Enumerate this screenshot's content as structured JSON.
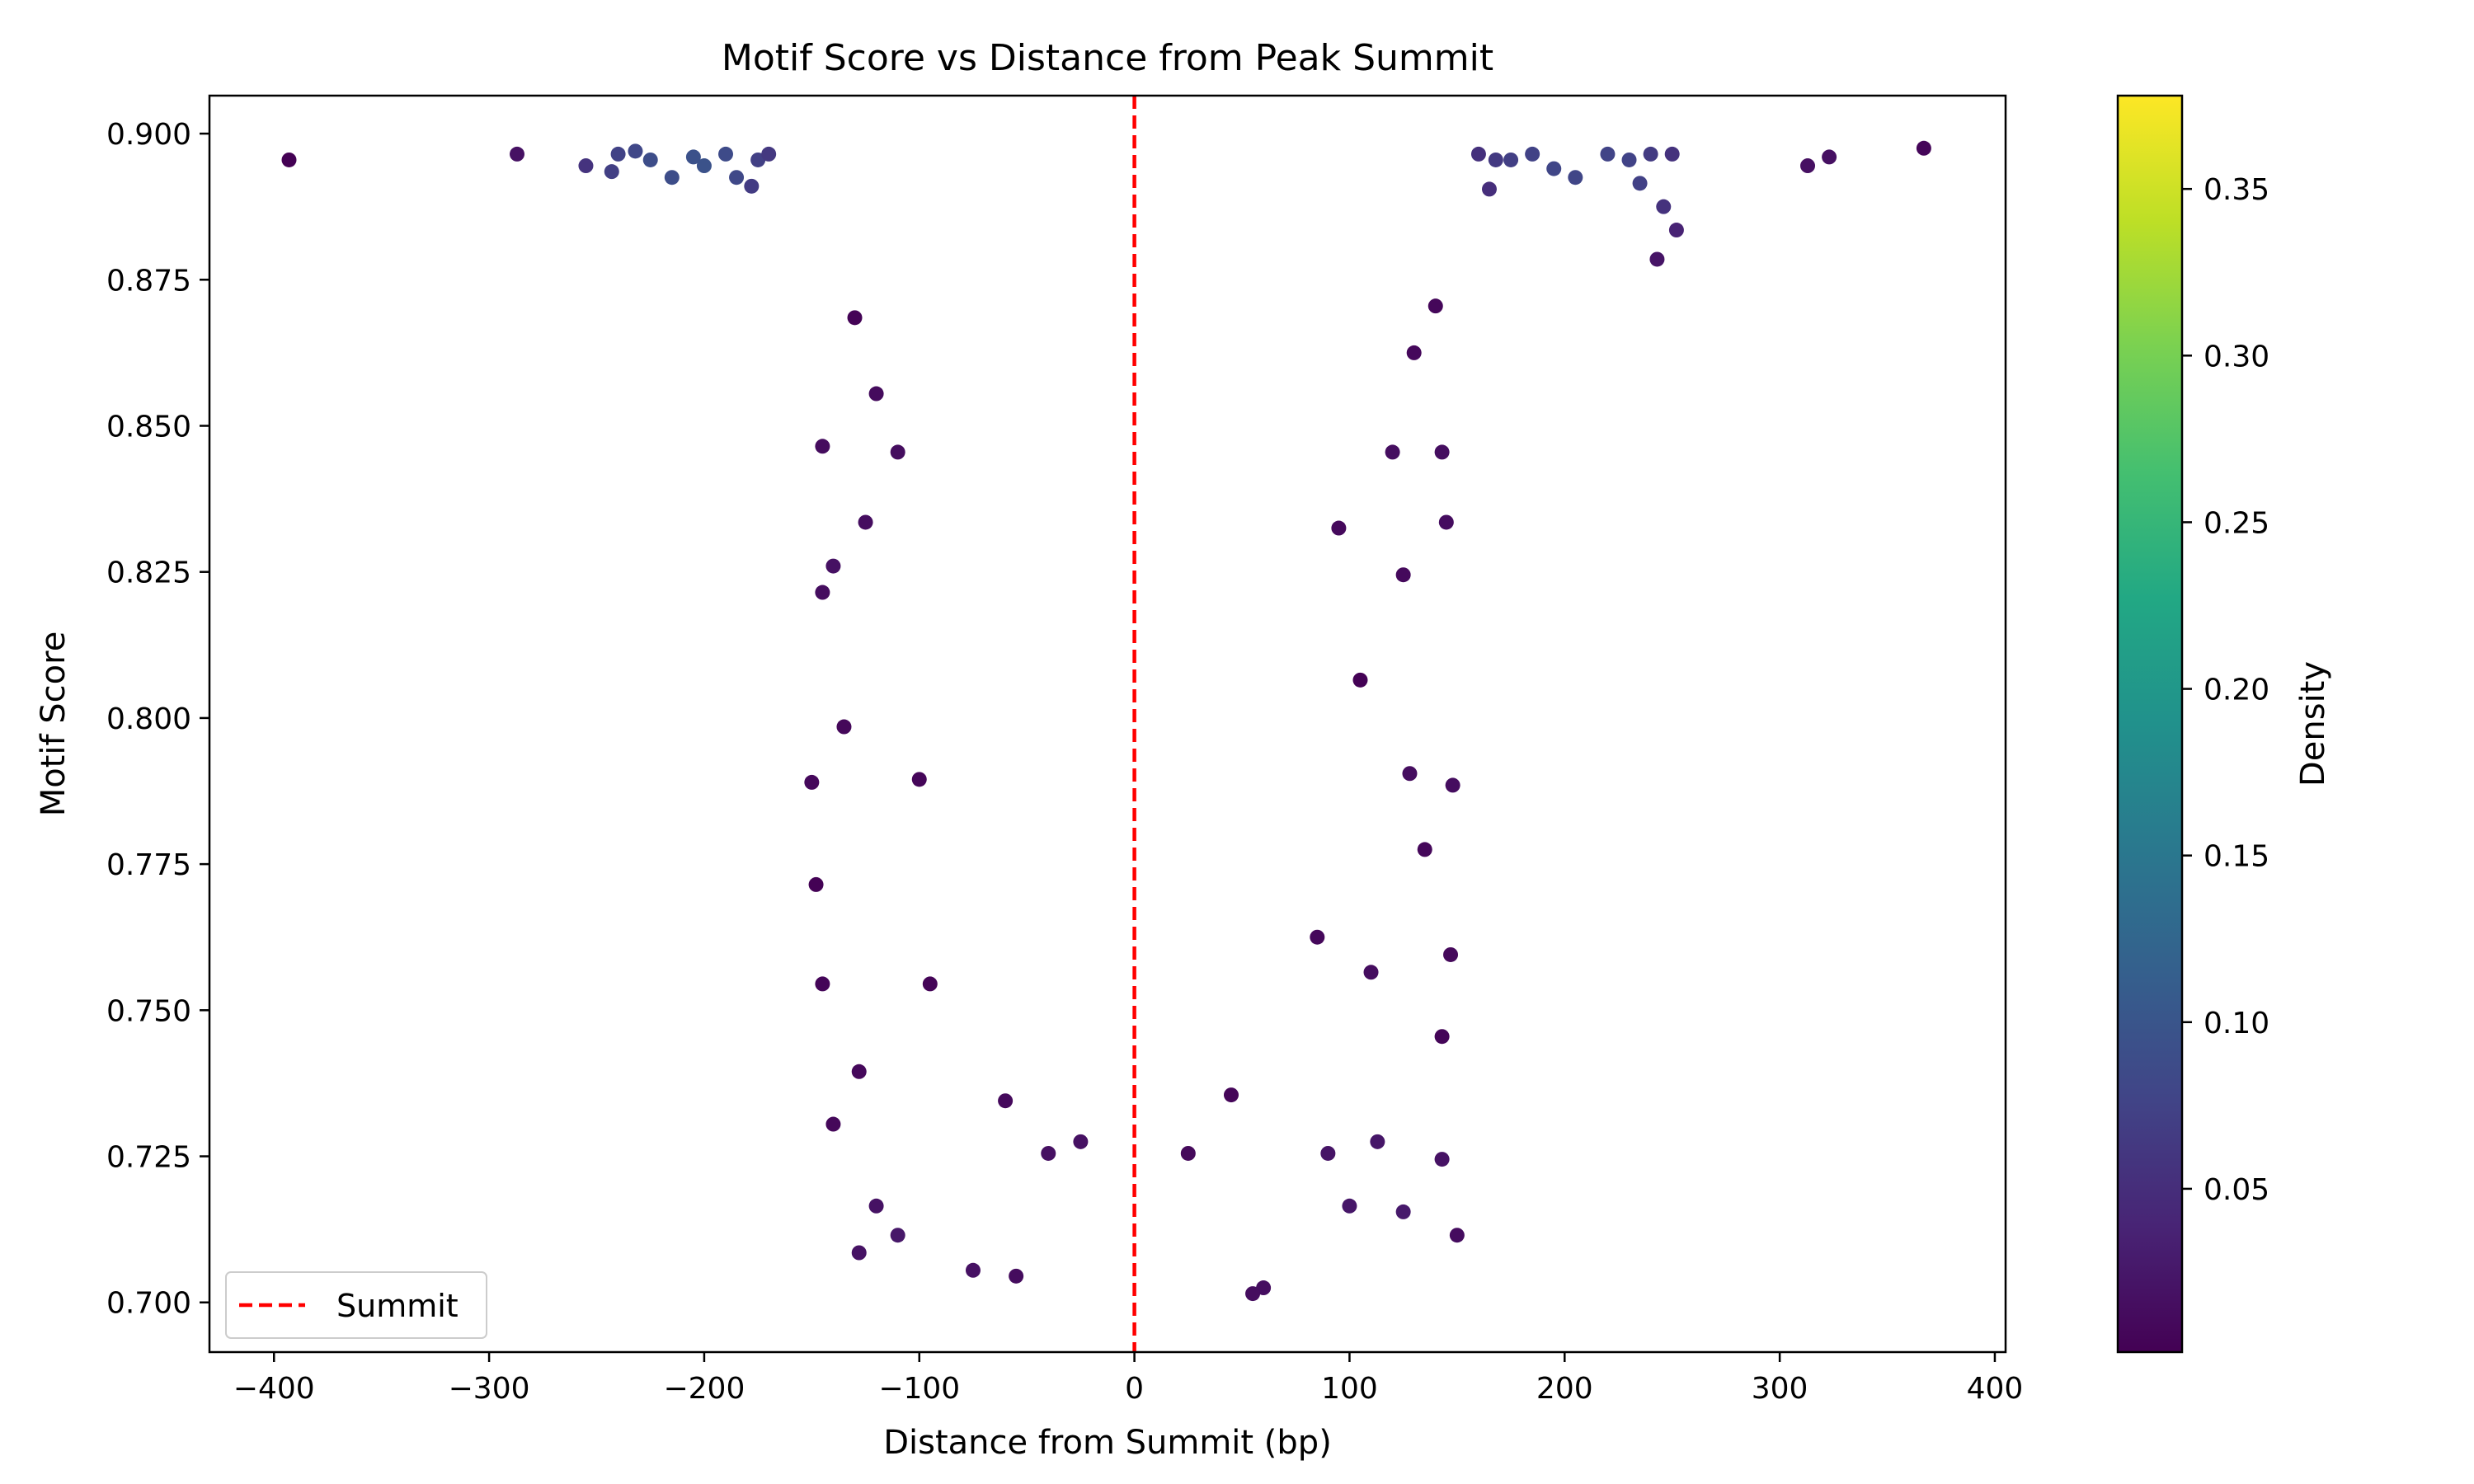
{
  "chart_data": {
    "type": "scatter",
    "title": "Motif Score vs Distance from Peak Summit",
    "xlabel": "Distance from Summit (bp)",
    "ylabel": "Motif Score",
    "xlim": [
      -430,
      405
    ],
    "ylim": [
      0.6915,
      0.9065
    ],
    "xticks": [
      -400,
      -300,
      -200,
      -100,
      0,
      100,
      200,
      300,
      400
    ],
    "xtick_labels": [
      "−400",
      "−300",
      "−200",
      "−100",
      "0",
      "100",
      "200",
      "300",
      "400"
    ],
    "yticks": [
      0.7,
      0.725,
      0.75,
      0.775,
      0.8,
      0.825,
      0.85,
      0.875,
      0.9
    ],
    "ytick_labels": [
      "0.700",
      "0.725",
      "0.750",
      "0.775",
      "0.800",
      "0.825",
      "0.850",
      "0.875",
      "0.900"
    ],
    "grid": false,
    "colormap": "viridis",
    "colorbar": {
      "label": "Density",
      "range": [
        0.001,
        0.378
      ],
      "ticks": [
        0.05,
        0.1,
        0.15,
        0.2,
        0.25,
        0.3,
        0.35
      ],
      "tick_labels": [
        "0.05",
        "0.10",
        "0.15",
        "0.20",
        "0.25",
        "0.30",
        "0.35"
      ]
    },
    "reference_line": {
      "x": 0,
      "label": "Summit",
      "color": "#ff0000",
      "style": "dashed"
    },
    "legend": {
      "placement": "lower-left",
      "entries": [
        "Summit"
      ]
    },
    "series": [
      {
        "points": [
          {
            "x": -393,
            "y": 0.8955
          },
          {
            "x": -287,
            "y": 0.8965
          },
          {
            "x": -255,
            "y": 0.8945
          },
          {
            "x": -243,
            "y": 0.8935
          },
          {
            "x": -240,
            "y": 0.8965
          },
          {
            "x": -232,
            "y": 0.897
          },
          {
            "x": -225,
            "y": 0.8955
          },
          {
            "x": -215,
            "y": 0.8925
          },
          {
            "x": -200,
            "y": 0.8945
          },
          {
            "x": -190,
            "y": 0.8965
          },
          {
            "x": -178,
            "y": 0.891
          },
          {
            "x": -175,
            "y": 0.8955
          },
          {
            "x": -170,
            "y": 0.8965
          },
          {
            "x": -205,
            "y": 0.896
          },
          {
            "x": -185,
            "y": 0.8925
          },
          {
            "x": 175,
            "y": 0.8955
          },
          {
            "x": 185,
            "y": 0.8965
          },
          {
            "x": 195,
            "y": 0.894
          },
          {
            "x": 205,
            "y": 0.8925
          },
          {
            "x": 220,
            "y": 0.8965
          },
          {
            "x": 230,
            "y": 0.8955
          },
          {
            "x": 235,
            "y": 0.8915
          },
          {
            "x": 240,
            "y": 0.8965
          },
          {
            "x": 243,
            "y": 0.8785
          },
          {
            "x": 246,
            "y": 0.8875
          },
          {
            "x": 250,
            "y": 0.8965
          },
          {
            "x": 252,
            "y": 0.8835
          },
          {
            "x": 160,
            "y": 0.8965
          },
          {
            "x": 165,
            "y": 0.8905
          },
          {
            "x": 168,
            "y": 0.8955
          },
          {
            "x": 313,
            "y": 0.8945
          },
          {
            "x": 323,
            "y": 0.896
          },
          {
            "x": 367,
            "y": 0.8975
          },
          {
            "x": -145,
            "y": 0.8465
          },
          {
            "x": -140,
            "y": 0.826
          },
          {
            "x": -145,
            "y": 0.8215
          },
          {
            "x": -150,
            "y": 0.789
          },
          {
            "x": -148,
            "y": 0.7715
          },
          {
            "x": -145,
            "y": 0.7545
          },
          {
            "x": -140,
            "y": 0.7305
          },
          {
            "x": -128,
            "y": 0.7085
          },
          {
            "x": -125,
            "y": 0.8335
          },
          {
            "x": -135,
            "y": 0.7985
          },
          {
            "x": -128,
            "y": 0.7395
          },
          {
            "x": -120,
            "y": 0.7165
          },
          {
            "x": -110,
            "y": 0.7115
          },
          {
            "x": -100,
            "y": 0.7895
          },
          {
            "x": -95,
            "y": 0.7545
          },
          {
            "x": 143,
            "y": 0.8455
          },
          {
            "x": 145,
            "y": 0.8335
          },
          {
            "x": 148,
            "y": 0.7885
          },
          {
            "x": 147,
            "y": 0.7595
          },
          {
            "x": 143,
            "y": 0.7455
          },
          {
            "x": 143,
            "y": 0.7245
          },
          {
            "x": 150,
            "y": 0.7115
          },
          {
            "x": 125,
            "y": 0.7155
          },
          {
            "x": 113,
            "y": 0.7275
          },
          {
            "x": 90,
            "y": 0.7255
          },
          {
            "x": 100,
            "y": 0.7165
          },
          {
            "x": 125,
            "y": 0.8245
          },
          {
            "x": 135,
            "y": 0.7775
          },
          {
            "x": 128,
            "y": 0.7905
          },
          {
            "x": 105,
            "y": 0.8065
          },
          {
            "x": 110,
            "y": 0.7565
          },
          {
            "x": 95,
            "y": 0.8325
          },
          {
            "x": 85,
            "y": 0.7625
          },
          {
            "x": 140,
            "y": 0.8705
          },
          {
            "x": 130,
            "y": 0.8625
          },
          {
            "x": 120,
            "y": 0.8455
          },
          {
            "x": -120,
            "y": 0.8555
          },
          {
            "x": -110,
            "y": 0.8455
          },
          {
            "x": -130,
            "y": 0.8685
          },
          {
            "x": -60,
            "y": 0.7345
          },
          {
            "x": -40,
            "y": 0.7255
          },
          {
            "x": -25,
            "y": 0.7275
          },
          {
            "x": 25,
            "y": 0.7255
          },
          {
            "x": 45,
            "y": 0.7355
          },
          {
            "x": 60,
            "y": 0.7025
          },
          {
            "x": -75,
            "y": 0.7055
          },
          {
            "x": -55,
            "y": 0.7045
          },
          {
            "x": 55,
            "y": 0.7015
          }
        ]
      }
    ]
  }
}
